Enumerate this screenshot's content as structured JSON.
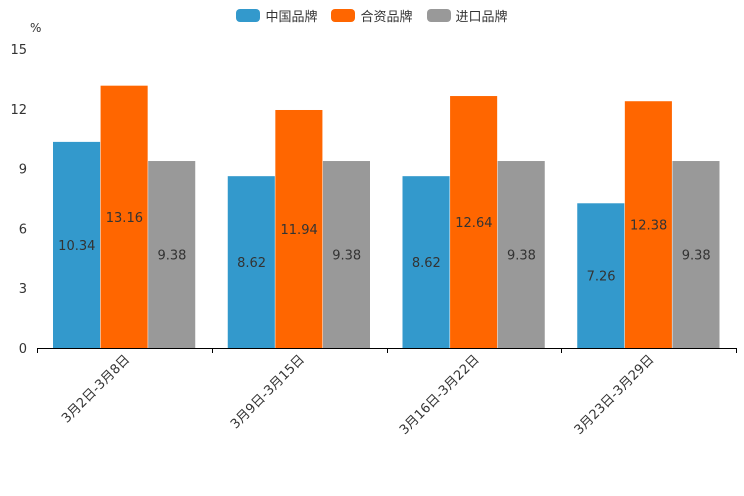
{
  "chart_data": {
    "type": "bar",
    "unit": "%",
    "categories": [
      "3月2日-3月8日",
      "3月9日-3月15日",
      "3月16日-3月22日",
      "3月23日-3月29日"
    ],
    "series": [
      {
        "name": "中国品牌",
        "color": "#3399cc",
        "values": [
          10.34,
          8.62,
          8.62,
          7.26
        ]
      },
      {
        "name": "合资品牌",
        "color": "#ff6600",
        "values": [
          13.16,
          11.94,
          12.64,
          12.38
        ]
      },
      {
        "name": "进口品牌",
        "color": "#999999",
        "values": [
          9.38,
          9.38,
          9.38,
          9.38
        ]
      }
    ],
    "ylim": [
      0,
      15
    ],
    "yticks": [
      0,
      3,
      6,
      9,
      12,
      15
    ],
    "legend_position": "top-center",
    "grid": false
  }
}
